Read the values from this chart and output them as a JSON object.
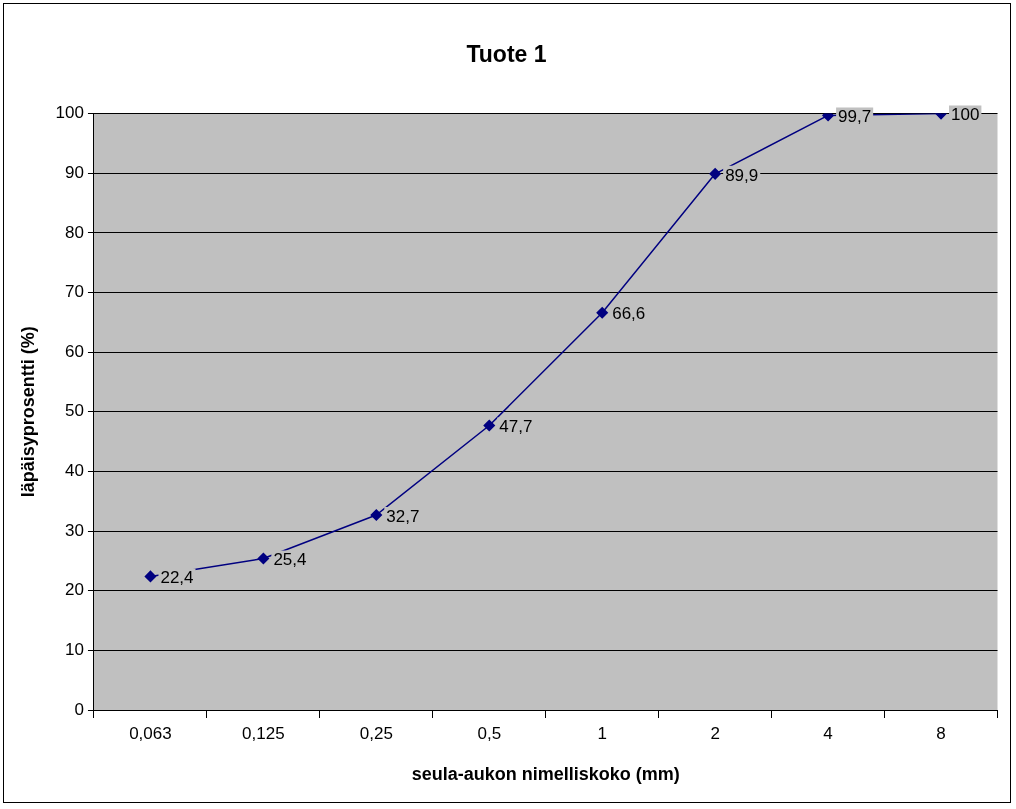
{
  "chart_data": {
    "type": "line",
    "title": "Tuote 1",
    "xlabel": "seula-aukon nimelliskoko (mm)",
    "ylabel": "läpäisyprosentti (%)",
    "categories": [
      "0,063",
      "0,125",
      "0,25",
      "0,5",
      "1",
      "2",
      "4",
      "8"
    ],
    "series": [
      {
        "color": "#000080",
        "values": [
          22.4,
          25.4,
          32.7,
          47.7,
          66.6,
          89.9,
          99.7,
          100
        ],
        "value_labels": [
          "22,4",
          "25,4",
          "32,7",
          "47,7",
          "66,6",
          "89,9",
          "99,7",
          "100"
        ]
      }
    ],
    "ylim": [
      0,
      100
    ],
    "yticks": [
      0,
      10,
      20,
      30,
      40,
      50,
      60,
      70,
      80,
      90,
      100
    ],
    "grid": "y",
    "legend": false,
    "marker": "diamond",
    "line_style": "solid"
  }
}
